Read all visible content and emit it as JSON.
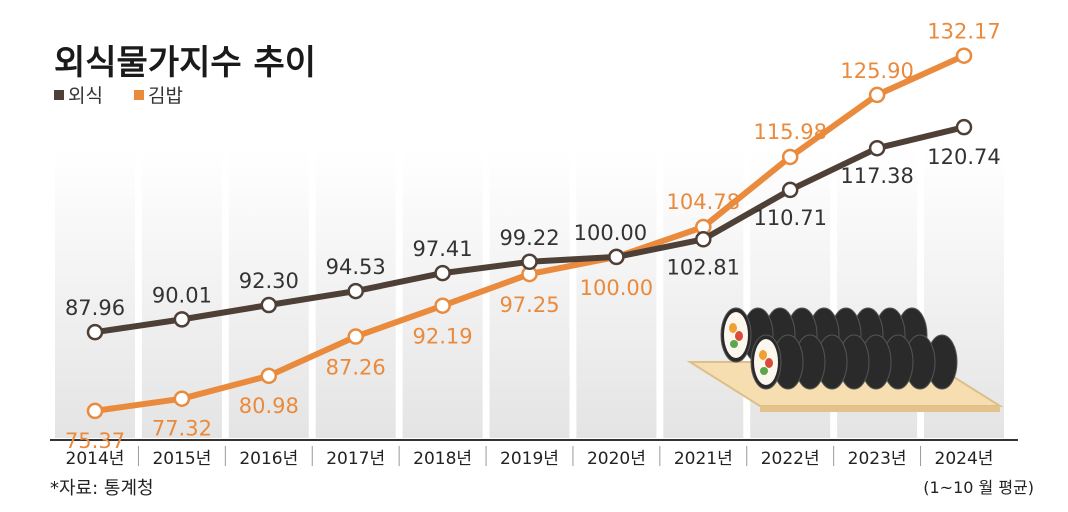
{
  "chart_data": {
    "type": "line",
    "title": "외식물가지수 추이",
    "categories": [
      "2014년",
      "2015년",
      "2016년",
      "2017년",
      "2018년",
      "2019년",
      "2020년",
      "2021년",
      "2022년",
      "2023년",
      "2024년"
    ],
    "series": [
      {
        "name": "외식",
        "color": "#4e3f37",
        "values": [
          87.96,
          90.01,
          92.3,
          94.53,
          97.41,
          99.22,
          100.0,
          102.81,
          110.71,
          117.38,
          120.74
        ],
        "labels": [
          "87.96",
          "90.01",
          "92.30",
          "94.53",
          "97.41",
          "99.22",
          "100.00",
          "102.81",
          "110.71",
          "117.38",
          "120.74"
        ]
      },
      {
        "name": "김밥",
        "color": "#ea8a3c",
        "values": [
          75.37,
          77.32,
          80.98,
          87.26,
          92.19,
          97.25,
          100.0,
          104.78,
          115.98,
          125.9,
          132.17
        ],
        "labels": [
          "75.37",
          "77.32",
          "80.98",
          "87.26",
          "92.19",
          "97.25",
          "100.00",
          "104.78",
          "115.98",
          "125.90",
          "132.17"
        ]
      }
    ],
    "ylim": [
      70,
      135
    ],
    "grid": false,
    "legend": "top-left",
    "source": "*자료: 통계청",
    "note": "(1~10 월 평균)"
  }
}
